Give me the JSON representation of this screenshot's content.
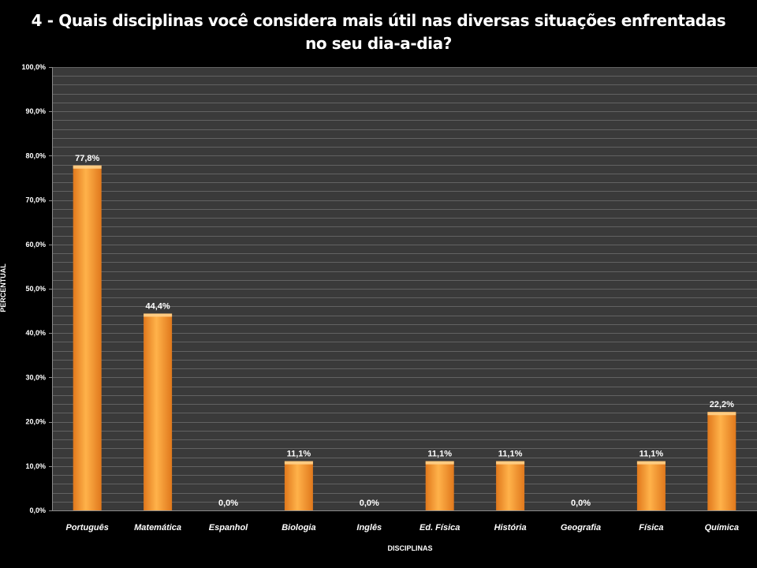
{
  "title_line1": "4 - Quais disciplinas você considera mais útil nas diversas situações enfrentadas",
  "title_line2": "no seu dia-a-dia?",
  "colors": {
    "background": "#000000",
    "plot_area": "#3a3a3a",
    "gridline": "#6a6a6a",
    "bar_light": "#ffb24a",
    "bar_dark": "#e0781c",
    "text": "#ffffff"
  },
  "chart_data": {
    "type": "bar",
    "title": "4 - Quais disciplinas você considera mais útil nas diversas situações enfrentadas no seu dia-a-dia?",
    "xlabel": "DISCIPLINAS",
    "ylabel": "PERCENTUAL",
    "categories": [
      "Português",
      "Matemática",
      "Espanhol",
      "Biologia",
      "Inglês",
      "Ed. Física",
      "História",
      "Geografia",
      "Física",
      "Química"
    ],
    "values": [
      77.8,
      44.4,
      0.0,
      11.1,
      0.0,
      11.1,
      11.1,
      0.0,
      11.1,
      22.2
    ],
    "data_labels": [
      "77,8%",
      "44,4%",
      "0,0%",
      "11,1%",
      "0,0%",
      "11,1%",
      "11,1%",
      "0,0%",
      "11,1%",
      "22,2%"
    ],
    "ylim": [
      0,
      100
    ],
    "yticks": [
      0,
      10,
      20,
      30,
      40,
      50,
      60,
      70,
      80,
      90,
      100
    ],
    "ytick_labels": [
      "0,0%",
      "10,0%",
      "20,0%",
      "30,0%",
      "40,0%",
      "50,0%",
      "60,0%",
      "70,0%",
      "80,0%",
      "90,0%",
      "100,0%"
    ],
    "grid": true,
    "legend": "none"
  }
}
